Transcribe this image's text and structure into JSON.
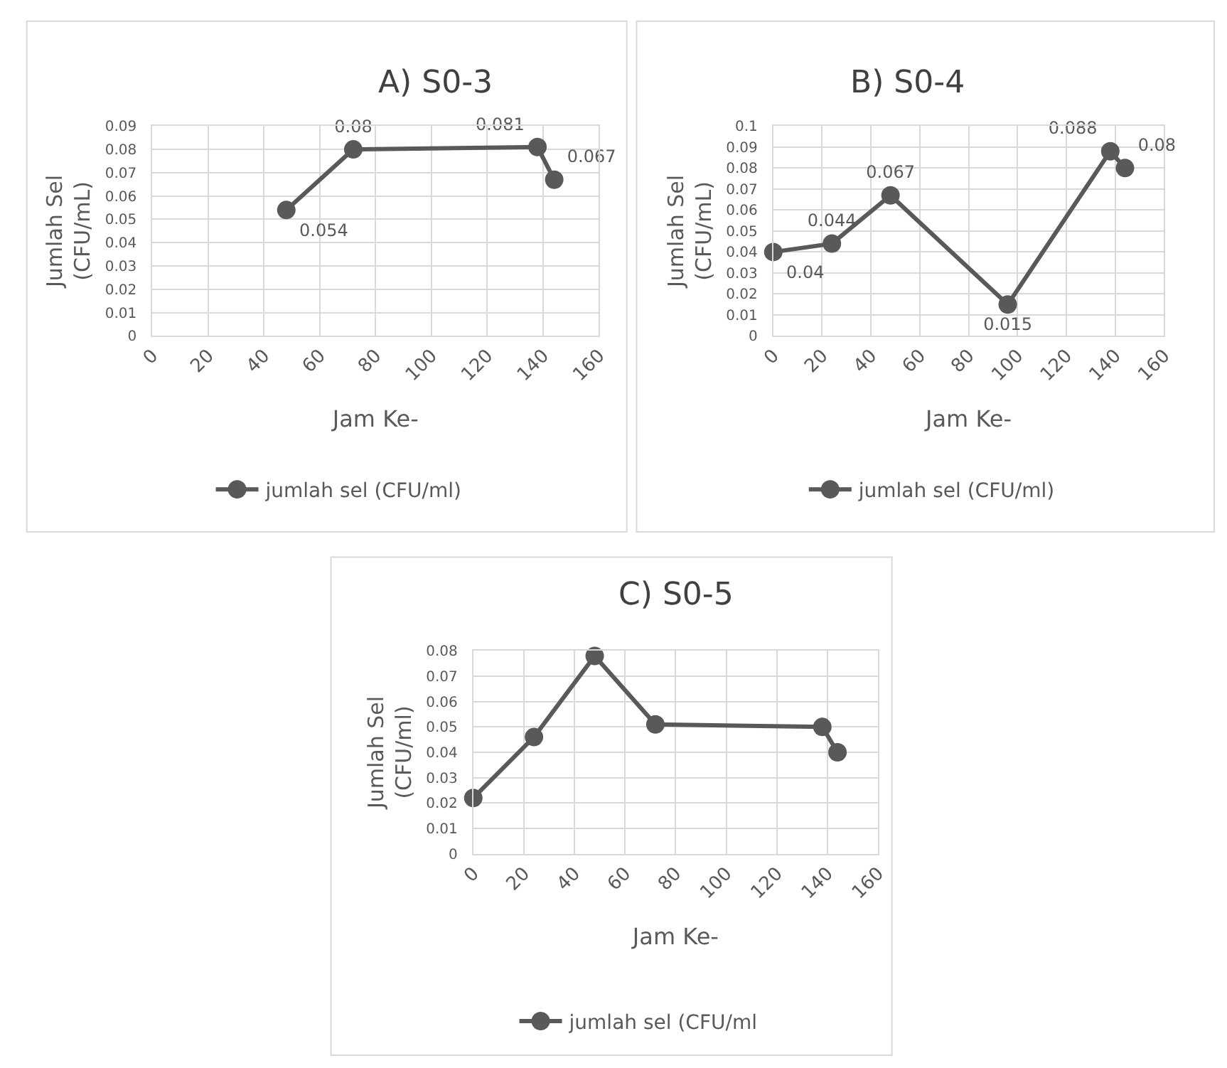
{
  "chart_data": [
    {
      "type": "line",
      "title": "A) S0-3",
      "xlabel": "Jam Ke-",
      "ylabel": "Jumlah Sel\n(CFU/mL)",
      "x": [
        48,
        72,
        138,
        144
      ],
      "series": [
        {
          "name": "jumlah sel (CFU/ml)",
          "color": "#595959",
          "values": [
            0.054,
            0.08,
            0.081,
            0.067
          ],
          "value_labels": [
            "0.054",
            "0.08",
            "0.081",
            "0.067"
          ]
        }
      ],
      "xlim": [
        0,
        160
      ],
      "xticks": [
        0,
        20,
        40,
        60,
        80,
        100,
        120,
        140,
        160
      ],
      "ylim": [
        0,
        0.09
      ],
      "yticks": [
        0,
        0.01,
        0.02,
        0.03,
        0.04,
        0.05,
        0.06,
        0.07,
        0.08,
        0.09
      ],
      "grid": true,
      "legend": "bottom",
      "marker": "circle",
      "line_style": "solid"
    },
    {
      "type": "line",
      "title": "B) S0-4",
      "xlabel": "Jam Ke-",
      "ylabel": "Jumlah Sel\n(CFU/mL)",
      "x": [
        0,
        24,
        48,
        96,
        138,
        144
      ],
      "series": [
        {
          "name": "jumlah sel (CFU/ml)",
          "color": "#595959",
          "values": [
            0.04,
            0.044,
            0.067,
            0.015,
            0.088,
            0.08
          ],
          "value_labels": [
            "0.04",
            "0.044",
            "0.067",
            "0.015",
            "0.088",
            "0.08"
          ]
        }
      ],
      "xlim": [
        0,
        160
      ],
      "xticks": [
        0,
        20,
        40,
        60,
        80,
        100,
        120,
        140,
        160
      ],
      "ylim": [
        0,
        0.1
      ],
      "yticks": [
        0,
        0.01,
        0.02,
        0.03,
        0.04,
        0.05,
        0.06,
        0.07,
        0.08,
        0.09,
        0.1
      ],
      "grid": true,
      "legend": "bottom",
      "marker": "circle",
      "line_style": "solid"
    },
    {
      "type": "line",
      "title": "C) S0-5",
      "xlabel": "Jam Ke-",
      "ylabel": "Jumlah Sel\n(CFU/ml)",
      "x": [
        0,
        24,
        48,
        72,
        138,
        144
      ],
      "series": [
        {
          "name": "jumlah sel (CFU/ml",
          "color": "#595959",
          "values": [
            0.022,
            0.046,
            0.078,
            0.051,
            0.05,
            0.04
          ]
        }
      ],
      "xlim": [
        0,
        160
      ],
      "xticks": [
        0,
        20,
        40,
        60,
        80,
        100,
        120,
        140,
        160
      ],
      "ylim": [
        0,
        0.08
      ],
      "yticks": [
        0,
        0.01,
        0.02,
        0.03,
        0.04,
        0.05,
        0.06,
        0.07,
        0.08
      ],
      "grid": true,
      "legend": "bottom",
      "marker": "circle",
      "line_style": "solid"
    }
  ]
}
